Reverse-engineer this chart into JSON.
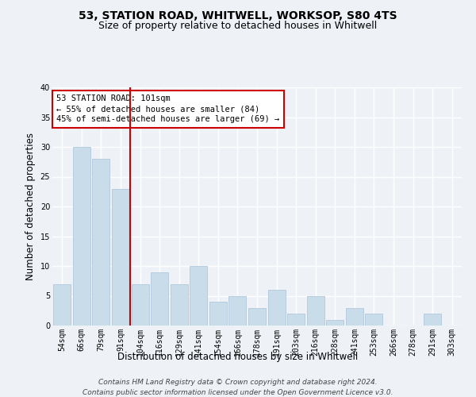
{
  "title": "53, STATION ROAD, WHITWELL, WORKSOP, S80 4TS",
  "subtitle": "Size of property relative to detached houses in Whitwell",
  "xlabel": "Distribution of detached houses by size in Whitwell",
  "ylabel": "Number of detached properties",
  "categories": [
    "54sqm",
    "66sqm",
    "79sqm",
    "91sqm",
    "104sqm",
    "116sqm",
    "129sqm",
    "141sqm",
    "154sqm",
    "166sqm",
    "178sqm",
    "191sqm",
    "203sqm",
    "216sqm",
    "228sqm",
    "241sqm",
    "253sqm",
    "266sqm",
    "278sqm",
    "291sqm",
    "303sqm"
  ],
  "values": [
    7,
    30,
    28,
    23,
    7,
    9,
    7,
    10,
    4,
    5,
    3,
    6,
    2,
    5,
    1,
    3,
    2,
    0,
    0,
    2,
    0
  ],
  "bar_color": "#c9dcea",
  "bar_edge_color": "#b0c8dc",
  "vline_x": 3.5,
  "vline_color": "#cc0000",
  "annotation_text": "53 STATION ROAD: 101sqm\n← 55% of detached houses are smaller (84)\n45% of semi-detached houses are larger (69) →",
  "annotation_box_color": "#cc0000",
  "ylim": [
    0,
    40
  ],
  "yticks": [
    0,
    5,
    10,
    15,
    20,
    25,
    30,
    35,
    40
  ],
  "footnote_line1": "Contains HM Land Registry data © Crown copyright and database right 2024.",
  "footnote_line2": "Contains public sector information licensed under the Open Government Licence v3.0.",
  "bg_color": "#eef2f7",
  "grid_color": "#ffffff",
  "title_fontsize": 10,
  "subtitle_fontsize": 9,
  "axis_label_fontsize": 8.5,
  "tick_fontsize": 7,
  "annot_fontsize": 7.5,
  "footnote_fontsize": 6.5
}
